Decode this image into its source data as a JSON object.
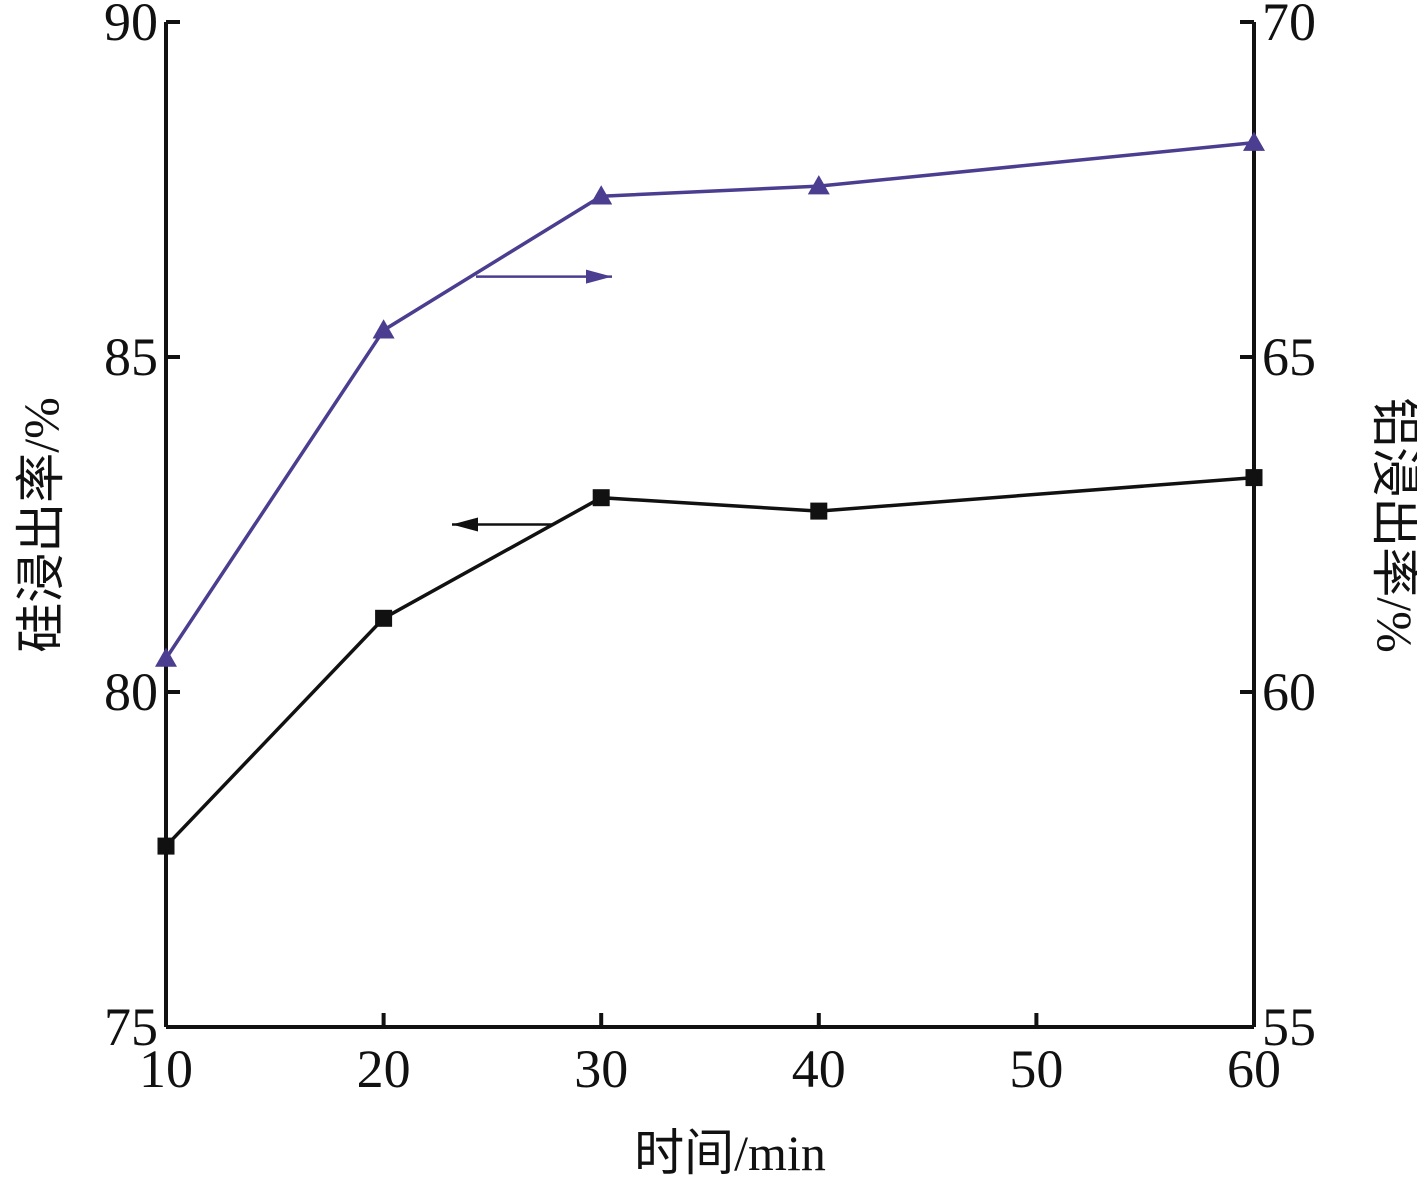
{
  "chart_data": {
    "type": "line",
    "x": [
      10,
      20,
      30,
      40,
      60
    ],
    "xlabel": "时间/min",
    "xlim": [
      10,
      60
    ],
    "xticks": [
      "10",
      "20",
      "30",
      "40",
      "50",
      "60"
    ],
    "ylabel_left": "硅浸出率/%",
    "ylim_left": [
      75,
      90
    ],
    "yticks_left": [
      "75",
      "80",
      "85",
      "90"
    ],
    "ylabel_right": "铝浸出率/%",
    "ylim_right": [
      55,
      70
    ],
    "yticks_right": [
      "55",
      "60",
      "65",
      "70"
    ],
    "grid": false,
    "series": [
      {
        "axis": "left",
        "marker": "square",
        "color": "#111111",
        "values": [
          77.7,
          81.1,
          82.9,
          82.7,
          83.2
        ],
        "direction_arrow": "left"
      },
      {
        "axis": "right",
        "marker": "triangle",
        "color": "#4b3d8f",
        "values": [
          60.5,
          65.4,
          67.4,
          67.55,
          68.2
        ],
        "direction_arrow": "right"
      }
    ]
  }
}
